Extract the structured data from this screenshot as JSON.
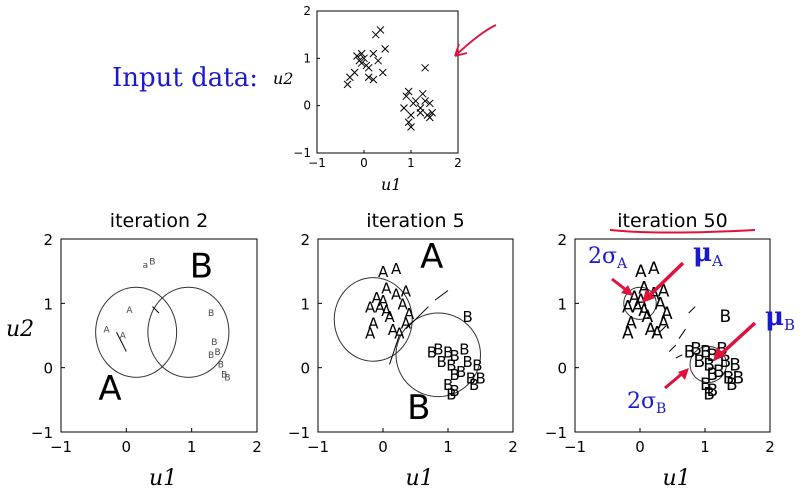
{
  "input_label": "Input data:",
  "annotations": {
    "sigma_a": "2σ",
    "sigma_a_sub": "A",
    "sigma_b": "2σ",
    "sigma_b_sub": "B",
    "mu_a": "μ",
    "mu_a_sub": "A",
    "mu_b": "μ",
    "mu_b_sub": "B"
  },
  "colors": {
    "annotation_blue": "#1a1acc",
    "annotation_red": "#e0113a"
  },
  "chart_data": [
    {
      "type": "scatter",
      "title": "",
      "xlabel": "u1",
      "ylabel": "u2",
      "xlim": [
        -1,
        2
      ],
      "ylim": [
        -1,
        2
      ],
      "xticks": [
        "−1",
        "0",
        "1",
        "2"
      ],
      "yticks": [
        "−1",
        "0",
        "1",
        "2"
      ],
      "marker": "x",
      "points": [
        [
          -0.35,
          0.45
        ],
        [
          -0.3,
          0.6
        ],
        [
          -0.2,
          0.7
        ],
        [
          -0.15,
          1.05
        ],
        [
          -0.1,
          0.95
        ],
        [
          -0.05,
          0.9
        ],
        [
          0.0,
          1.0
        ],
        [
          -0.05,
          1.1
        ],
        [
          0.05,
          0.85
        ],
        [
          0.1,
          0.8
        ],
        [
          0.1,
          0.6
        ],
        [
          0.2,
          0.55
        ],
        [
          0.2,
          1.1
        ],
        [
          0.25,
          1.5
        ],
        [
          0.3,
          0.95
        ],
        [
          0.35,
          1.6
        ],
        [
          0.4,
          0.7
        ],
        [
          0.45,
          1.2
        ],
        [
          0.9,
          0.2
        ],
        [
          0.95,
          0.3
        ],
        [
          0.85,
          -0.05
        ],
        [
          1.0,
          -0.2
        ],
        [
          0.95,
          -0.35
        ],
        [
          1.0,
          -0.45
        ],
        [
          1.05,
          0.05
        ],
        [
          1.1,
          0.1
        ],
        [
          1.2,
          -0.15
        ],
        [
          1.25,
          0.25
        ],
        [
          1.3,
          0.1
        ],
        [
          1.35,
          -0.2
        ],
        [
          1.4,
          -0.25
        ],
        [
          1.45,
          -0.15
        ],
        [
          1.3,
          0.8
        ],
        [
          1.2,
          -0.05
        ],
        [
          1.4,
          0.05
        ]
      ]
    },
    {
      "type": "scatter",
      "title": "iteration 2",
      "xlabel": "u1",
      "ylabel": "u2",
      "xlim": [
        -1,
        2
      ],
      "ylim": [
        -1,
        2
      ],
      "xticks": [
        "−1",
        "0",
        "1",
        "2"
      ],
      "yticks": [
        "−1",
        "0",
        "1",
        "2"
      ],
      "big_labels": [
        {
          "text": "A",
          "x": -0.25,
          "y": -0.5
        },
        {
          "text": "B",
          "x": 1.15,
          "y": 1.4
        }
      ],
      "small_labels": [
        {
          "text": "A",
          "x": -0.35,
          "y": 0.55
        },
        {
          "text": "A",
          "x": -0.1,
          "y": 0.45
        },
        {
          "text": "A",
          "x": 0.0,
          "y": 0.85
        },
        {
          "text": "a",
          "x": 0.25,
          "y": 1.55
        },
        {
          "text": "B",
          "x": 0.35,
          "y": 1.6
        },
        {
          "text": "B",
          "x": 1.25,
          "y": 0.8
        },
        {
          "text": "B",
          "x": 1.3,
          "y": 0.35
        },
        {
          "text": "B",
          "x": 1.25,
          "y": 0.15
        },
        {
          "text": "B",
          "x": 1.35,
          "y": 0.2
        },
        {
          "text": "B",
          "x": 1.4,
          "y": 0.0
        },
        {
          "text": "B",
          "x": 1.45,
          "y": -0.15
        },
        {
          "text": "B",
          "x": 1.5,
          "y": -0.2
        }
      ],
      "ellipses": [
        {
          "cx": 0.15,
          "cy": 0.55,
          "rx": 0.62,
          "ry": 0.7
        },
        {
          "cx": 0.95,
          "cy": 0.55,
          "rx": 0.62,
          "ry": 0.7
        }
      ]
    },
    {
      "type": "scatter",
      "title": "iteration 5",
      "xlabel": "u1",
      "ylabel": "u2",
      "xlim": [
        -1,
        2
      ],
      "ylim": [
        -1,
        2
      ],
      "xticks": [
        "−1",
        "0",
        "1",
        "2"
      ],
      "yticks": [
        "−1",
        "0",
        "1",
        "2"
      ],
      "big_labels": [
        {
          "text": "A",
          "x": 0.75,
          "y": 1.55
        },
        {
          "text": "B",
          "x": 0.55,
          "y": -0.8
        }
      ],
      "ellipses": [
        {
          "cx": -0.15,
          "cy": 0.75,
          "rx": 0.6,
          "ry": 0.65
        },
        {
          "cx": 0.85,
          "cy": 0.2,
          "rx": 0.65,
          "ry": 0.65
        }
      ]
    },
    {
      "type": "scatter",
      "title": "iteration 50",
      "xlabel": "u1",
      "ylabel": "u2",
      "xlim": [
        -1,
        2
      ],
      "ylim": [
        -1,
        2
      ],
      "xticks": [
        "−1",
        "0",
        "1",
        "2"
      ],
      "yticks": [
        "−1",
        "0",
        "1",
        "2"
      ],
      "ellipses": [
        {
          "cx": 0.0,
          "cy": 1.0,
          "rx": 0.25,
          "ry": 0.25
        },
        {
          "cx": 1.05,
          "cy": 0.05,
          "rx": 0.28,
          "ry": 0.28
        }
      ]
    }
  ]
}
